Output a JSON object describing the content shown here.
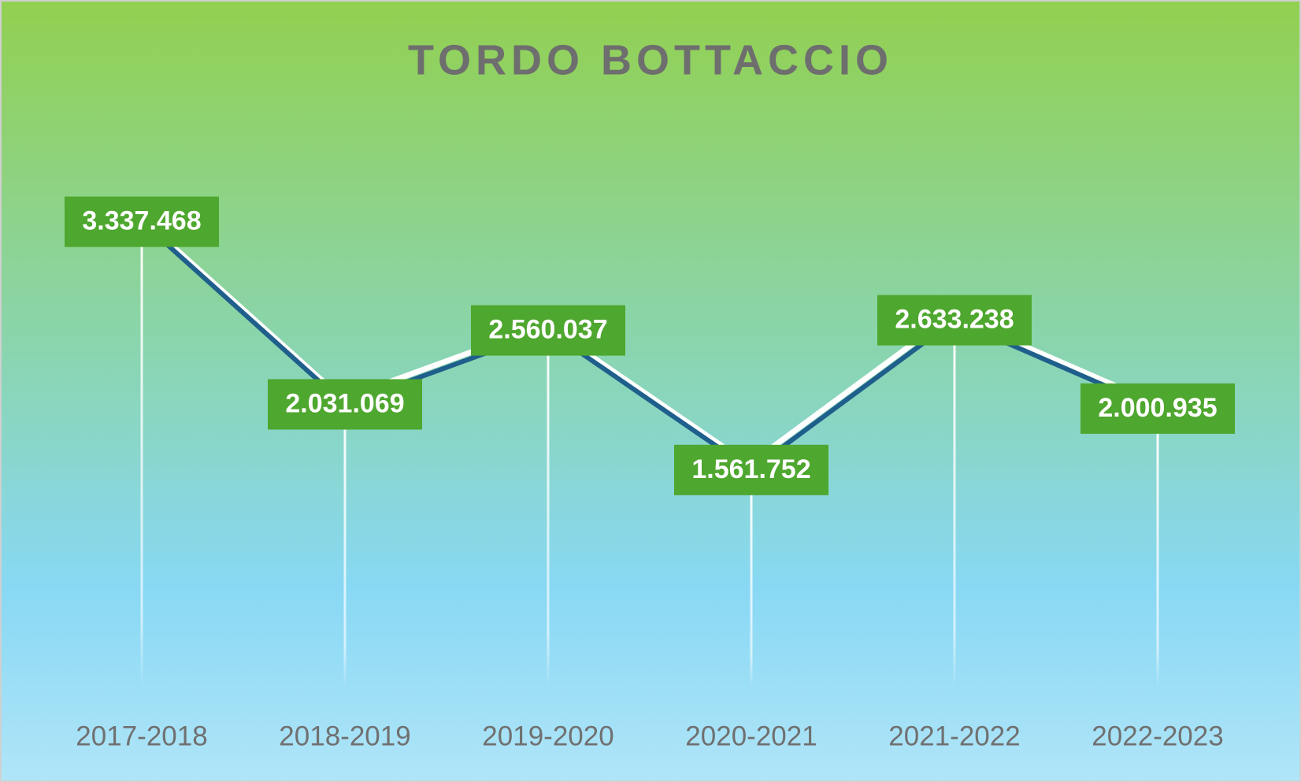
{
  "chart_data": {
    "type": "line",
    "title": "TORDO BOTTACCIO",
    "categories": [
      "2017-2018",
      "2018-2019",
      "2019-2020",
      "2020-2021",
      "2021-2022",
      "2022-2023"
    ],
    "series": [
      {
        "name": "Tordo bottaccio",
        "color": "#1f5f8b",
        "values": [
          3337468,
          2031069,
          2560037,
          1561752,
          2633238,
          2000935
        ],
        "value_labels": [
          "3.337.468",
          "2.031.069",
          "2.560.037",
          "1.561.752",
          "2.633.238",
          "2.000.935"
        ]
      }
    ],
    "label_color": "#4ea72e",
    "ylim": [
      0,
      4000000
    ]
  }
}
